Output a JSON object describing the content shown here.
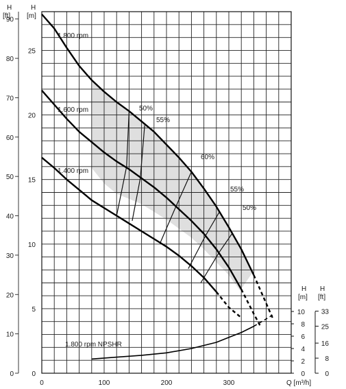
{
  "chart_data": {
    "type": "line",
    "x_axis": {
      "label": "Q [m³/h]",
      "ticks": [
        "0",
        "100",
        "200",
        "300"
      ],
      "range": [
        0,
        400
      ],
      "grid_step": 20
    },
    "y_axis_m": {
      "label": "H",
      "unit": "[m]",
      "ticks": [
        "0",
        "5",
        "10",
        "15",
        "20",
        "25"
      ],
      "range": [
        0,
        28
      ]
    },
    "y_axis_ft": {
      "label": "H",
      "unit": "[ft]",
      "ticks": [
        "0",
        "10",
        "20",
        "30",
        "40",
        "50",
        "60",
        "70",
        "80",
        "90"
      ]
    },
    "npsh_axis_m": {
      "label": "H",
      "unit": "[m]",
      "ticks": [
        "0",
        "2",
        "4",
        "6",
        "8",
        "10"
      ]
    },
    "npsh_axis_ft": {
      "label": "H",
      "unit": "[ft]",
      "ticks": [
        "0",
        "8",
        "16",
        "25",
        "33"
      ]
    },
    "series": [
      {
        "name": "1.800 rpm",
        "x": [
          0,
          20,
          40,
          60,
          80,
          100,
          120,
          140,
          160,
          180,
          200,
          220,
          240,
          260,
          280,
          300,
          320,
          340,
          360,
          370
        ],
        "y": [
          27.8,
          26.7,
          25.2,
          23.8,
          22.7,
          21.8,
          21.0,
          20.3,
          19.5,
          18.7,
          17.7,
          16.7,
          15.6,
          14.3,
          12.9,
          11.3,
          9.6,
          7.6,
          5.4,
          4.3
        ],
        "solid_until": 345
      },
      {
        "name": "1.600 rpm",
        "x": [
          0,
          20,
          40,
          60,
          80,
          100,
          120,
          140,
          160,
          180,
          200,
          220,
          240,
          260,
          280,
          300,
          320,
          340,
          350
        ],
        "y": [
          21.9,
          20.8,
          19.7,
          18.7,
          17.9,
          17.1,
          16.4,
          15.8,
          15.1,
          14.4,
          13.6,
          12.7,
          11.8,
          10.8,
          9.6,
          8.2,
          6.5,
          4.6,
          3.7
        ],
        "solid_until": 320
      },
      {
        "name": "1.400 rpm",
        "x": [
          0,
          20,
          40,
          60,
          80,
          100,
          120,
          140,
          160,
          180,
          200,
          220,
          240,
          260,
          280,
          300,
          320
        ],
        "y": [
          16.7,
          15.9,
          15.0,
          14.2,
          13.4,
          12.8,
          12.2,
          11.6,
          11.0,
          10.4,
          9.8,
          9.1,
          8.3,
          7.4,
          6.3,
          5.1,
          4.3
        ],
        "solid_until": 290
      },
      {
        "name": "1.800 rpm NPSHR",
        "axis": "npsh_m",
        "x": [
          80,
          120,
          160,
          200,
          240,
          280,
          300,
          320,
          340,
          360,
          370
        ],
        "y": [
          2.3,
          2.6,
          2.9,
          3.3,
          4.0,
          5.0,
          5.8,
          6.6,
          7.6,
          8.8,
          9.4
        ],
        "solid_until": 340
      }
    ],
    "efficiency_labels": [
      "50%",
      "55%",
      "60%",
      "55%",
      "50%"
    ],
    "operating_region": {
      "shaded": true
    },
    "grid": true
  }
}
